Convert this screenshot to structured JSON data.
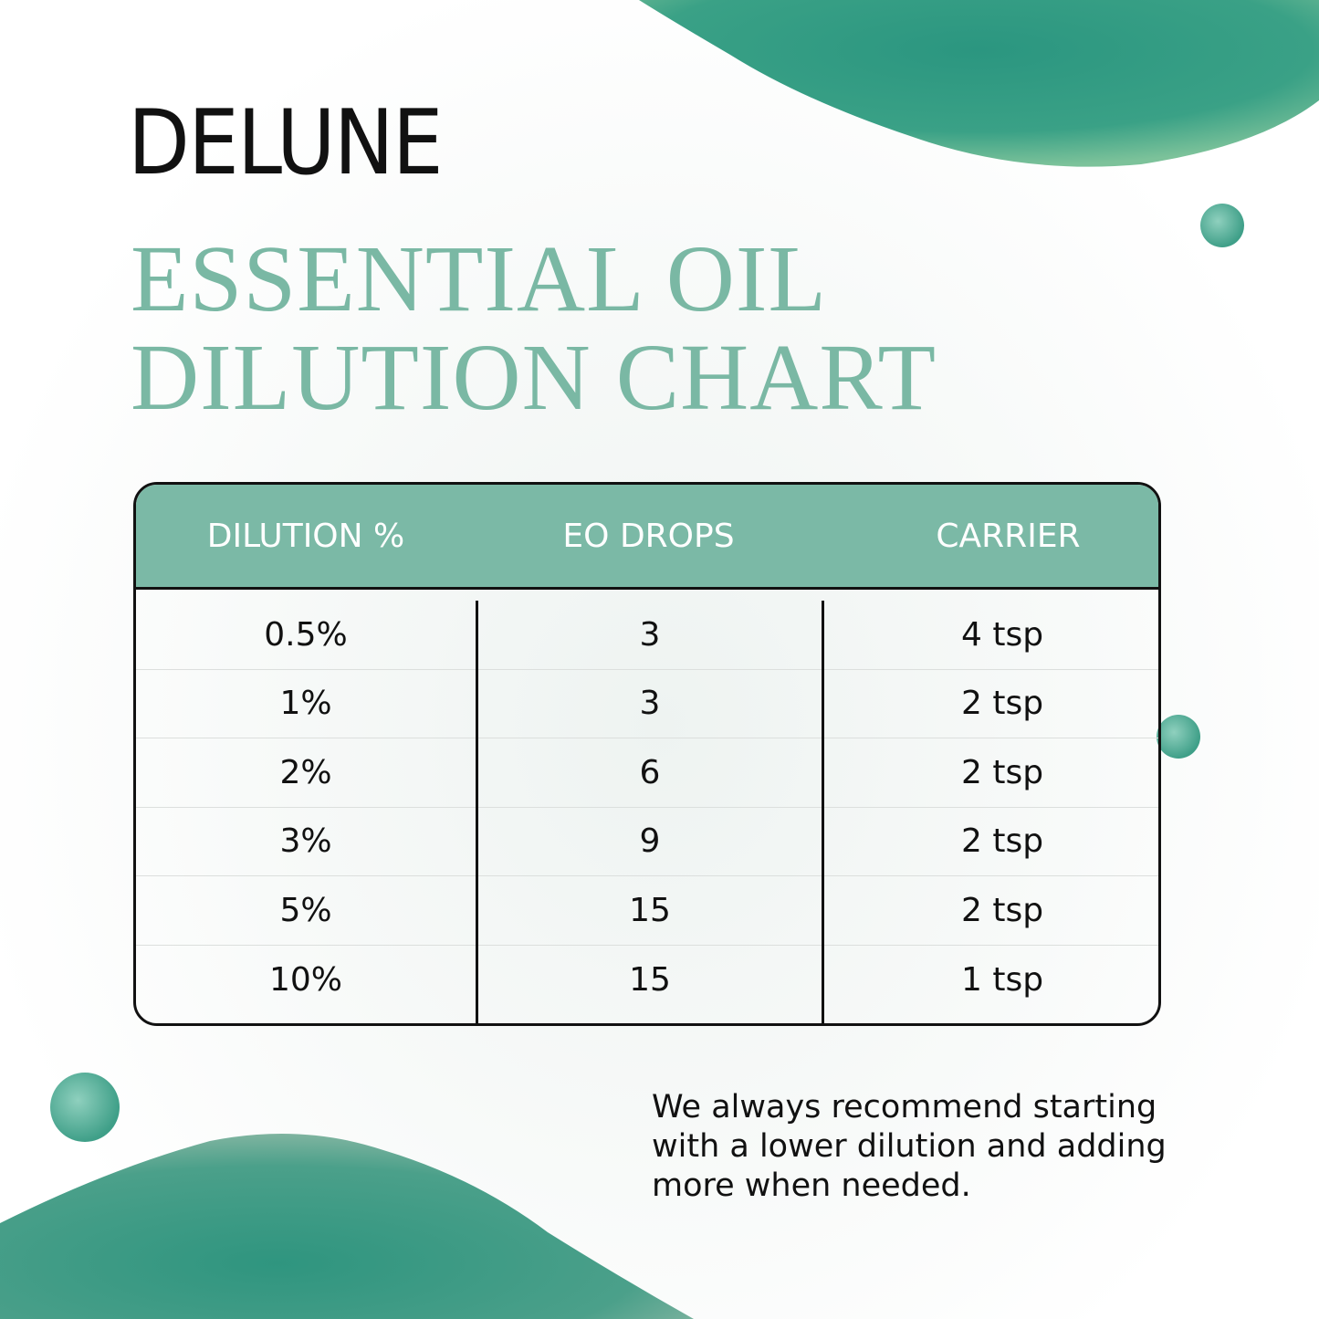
{
  "brand": "DELUNE",
  "title": {
    "line1": "ESSENTIAL OIL",
    "line2": "DILUTION CHART"
  },
  "colors": {
    "accent": "#7bb9a6",
    "watercolor": "#2f9c85",
    "text": "#111111"
  },
  "table": {
    "headers": [
      "DILUTION %",
      "EO DROPS",
      "CARRIER"
    ],
    "rows": [
      [
        "0.5%",
        "3",
        "4 tsp"
      ],
      [
        "1%",
        "3",
        "2 tsp"
      ],
      [
        "2%",
        "6",
        "2 tsp"
      ],
      [
        "3%",
        "9",
        "2 tsp"
      ],
      [
        "5%",
        "15",
        "2 tsp"
      ],
      [
        "10%",
        "15",
        "1 tsp"
      ]
    ]
  },
  "note": "We always recommend starting with a lower dilution and adding more when needed."
}
